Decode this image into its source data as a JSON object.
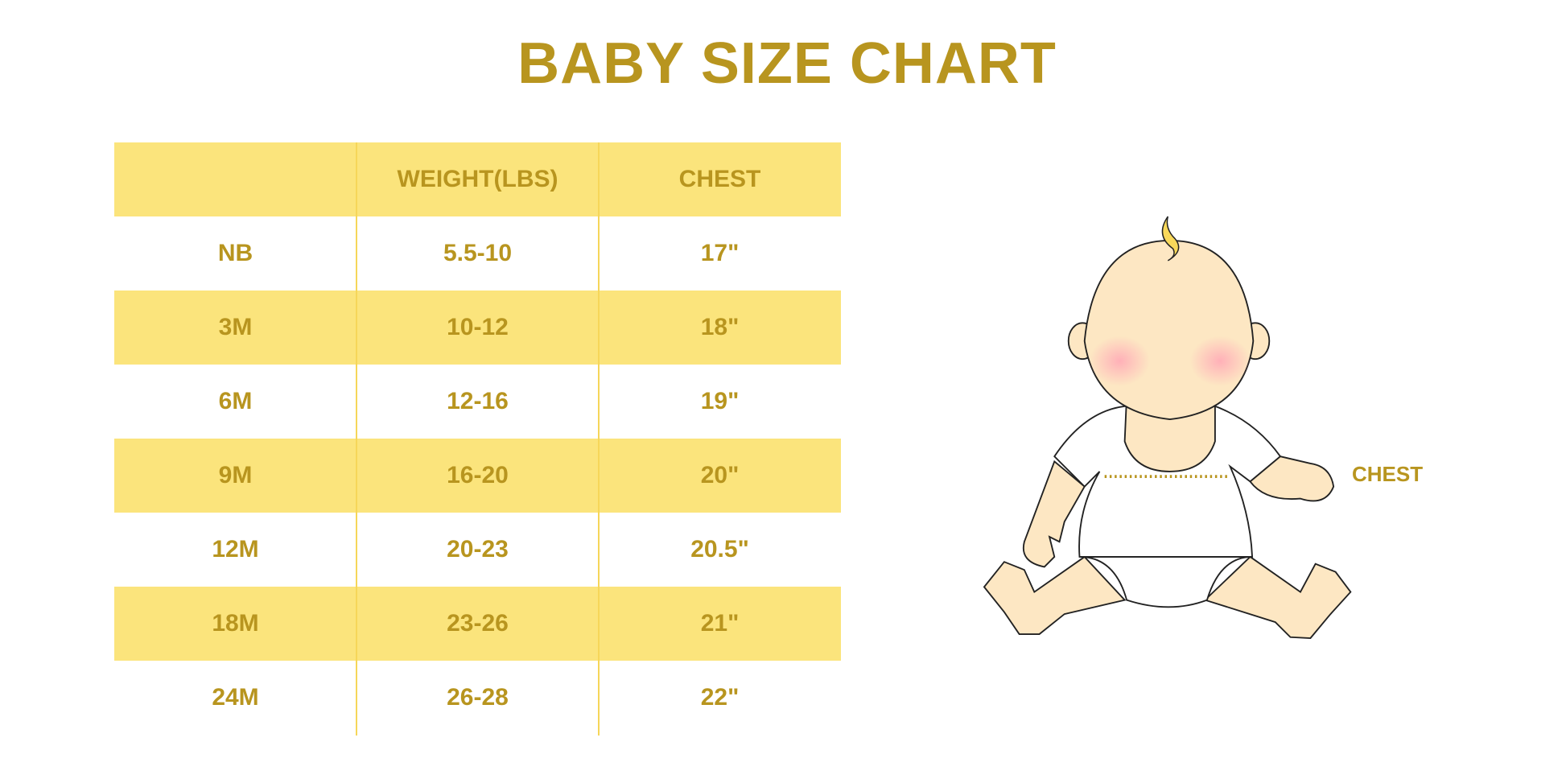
{
  "title": "BABY SIZE CHART",
  "colors": {
    "text": "#b8951f",
    "band": "#fbe47c",
    "divider": "#f6d659"
  },
  "table": {
    "headers": [
      "",
      "WEIGHT(LBS)",
      "CHEST"
    ],
    "rows": [
      [
        "NB",
        "5.5-10",
        "17\""
      ],
      [
        "3M",
        "10-12",
        "18\""
      ],
      [
        "6M",
        "12-16",
        "19\""
      ],
      [
        "9M",
        "16-20",
        "20\""
      ],
      [
        "12M",
        "20-23",
        "20.5\""
      ],
      [
        "18M",
        "23-26",
        "21\""
      ],
      [
        "24M",
        "26-28",
        "22\""
      ]
    ]
  },
  "illustration": {
    "label": "CHEST"
  }
}
